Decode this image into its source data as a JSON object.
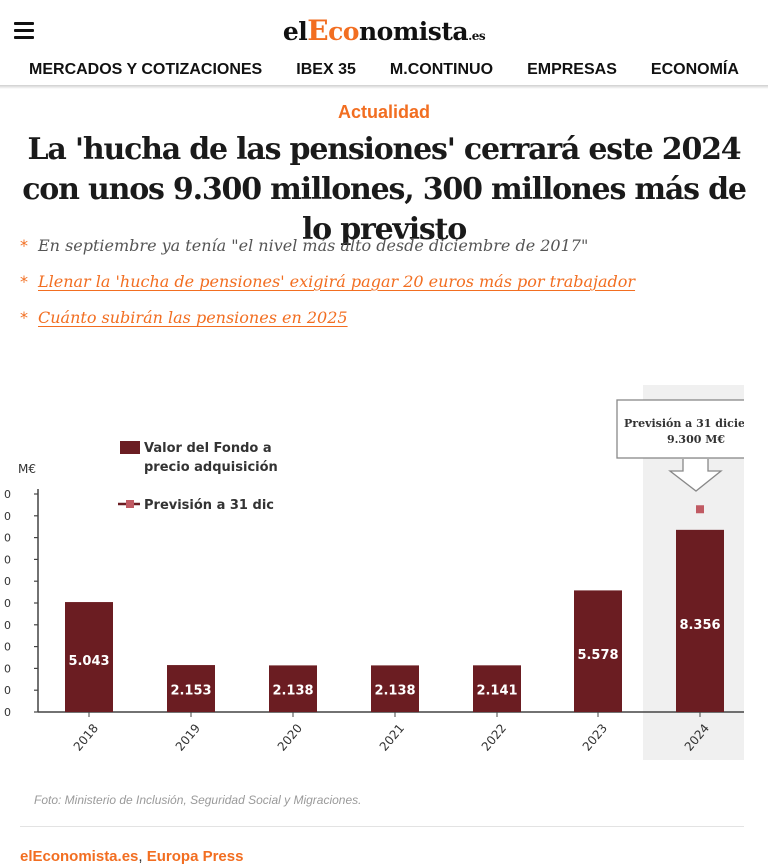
{
  "header": {
    "logo": {
      "part1": "el",
      "part2": "E",
      "part3": "co",
      "part4": "nomista",
      "part5": ".es"
    },
    "nav": [
      "MERCADOS Y COTIZACIONES",
      "IBEX 35",
      "M.CONTINUO",
      "EMPRESAS",
      "ECONOMÍA"
    ]
  },
  "article": {
    "section": "Actualidad",
    "headline": "La 'hucha de las pensiones' cerrará este 2024 con unos 9.300 millones, 300 millones más de lo previsto",
    "bullets": [
      {
        "text": "En septiembre ya tenía \"el nivel más alto desde diciembre de 2017\"",
        "link": false
      },
      {
        "text": "Llenar la 'hucha de pensiones' exigirá pagar 20 euros más por trabajador",
        "link": true
      },
      {
        "text": "Cuánto subirán las pensiones en 2025",
        "link": true
      }
    ],
    "caption": "Foto: Ministerio de Inclusión, Seguridad Social y Migraciones.",
    "sources": [
      "elEconomista.es",
      "Europa Press"
    ],
    "source_separator": ","
  },
  "chart_data": {
    "type": "bar",
    "ylabel": "M€",
    "categories": [
      "2018",
      "2019",
      "2020",
      "2021",
      "2022",
      "2023",
      "2024"
    ],
    "series": [
      {
        "name": "Valor del Fondo a precio adquisición",
        "values": [
          5043,
          2153,
          2138,
          2138,
          2141,
          5578,
          8356
        ],
        "color": "#6b1d22"
      },
      {
        "name": "Previsión a 31 dic",
        "values": [
          null,
          null,
          null,
          null,
          null,
          null,
          9300
        ],
        "color": "#c05a63"
      }
    ],
    "value_labels": [
      "5.043",
      "2.153",
      "2.138",
      "2.138",
      "2.141",
      "5.578",
      "8.356"
    ],
    "ylim": [
      0,
      10000
    ],
    "y_tick_labels": [
      "0",
      "0",
      "0",
      "0",
      "0",
      "0",
      "0",
      "0",
      "0",
      "0",
      "0"
    ],
    "legend_line1": "Valor del Fondo a",
    "legend_line2": "precio adquisición",
    "legend_forecast": "Previsión a 31 dic",
    "callout_line1": "Previsión a 31 dicie",
    "callout_line2": "9.300 M€",
    "legend_position": "top-left",
    "grid": false
  }
}
